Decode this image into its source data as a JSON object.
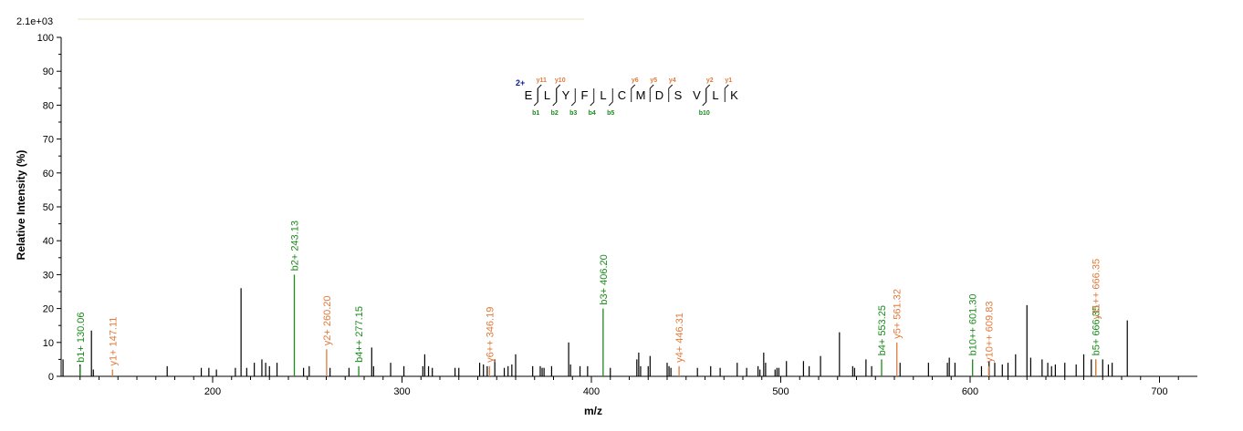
{
  "chart_data": {
    "type": "bar",
    "max_intensity_label": "2.1e+03",
    "xlabel": "m/z",
    "ylabel": "Relative   Intensity (%)",
    "xlim": [
      120,
      720
    ],
    "ylim": [
      0,
      100
    ],
    "x_ticks": [
      200,
      300,
      400,
      500,
      600,
      700
    ],
    "y_ticks": [
      0,
      10,
      20,
      30,
      40,
      50,
      60,
      70,
      80,
      90,
      100
    ],
    "colors": {
      "b_ion": "#1a8a1a",
      "y_ion": "#e07a3c",
      "unassigned": "#000000"
    },
    "annotated_peaks": [
      {
        "mz": 130.06,
        "intensity": 3,
        "label": "b1+ 130.06",
        "type": "b"
      },
      {
        "mz": 147.11,
        "intensity": 2,
        "label": "y1+ 147.11",
        "type": "y"
      },
      {
        "mz": 243.13,
        "intensity": 30,
        "label": "b2+ 243.13",
        "type": "b"
      },
      {
        "mz": 260.2,
        "intensity": 8,
        "label": "y2+ 260.20",
        "type": "y"
      },
      {
        "mz": 277.15,
        "intensity": 3,
        "label": "b4++ 277.15",
        "type": "b"
      },
      {
        "mz": 346.19,
        "intensity": 3,
        "label": "y6++ 346.19",
        "type": "y"
      },
      {
        "mz": 406.2,
        "intensity": 20,
        "label": "b3+ 406.20",
        "type": "b"
      },
      {
        "mz": 446.31,
        "intensity": 3,
        "label": "y4+ 446.31",
        "type": "y"
      },
      {
        "mz": 553.25,
        "intensity": 5,
        "label": "b4+ 553.25",
        "type": "b"
      },
      {
        "mz": 561.32,
        "intensity": 10,
        "label": "y5+ 561.32",
        "type": "y"
      },
      {
        "mz": 601.3,
        "intensity": 5,
        "label": "b10++ 601.30",
        "type": "b"
      },
      {
        "mz": 609.83,
        "intensity": 3,
        "label": "y10++ 609.83",
        "type": "y"
      },
      {
        "mz": 666.35,
        "intensity": 5,
        "label": "b5+ 666.35",
        "type": "b"
      },
      {
        "mz": 666.35,
        "intensity": 5,
        "label": "y11++ 666.35",
        "type": "y",
        "label_offset": 1
      }
    ],
    "unassigned_peaks": [
      [
        121,
        5
      ],
      [
        130,
        3.5
      ],
      [
        136,
        13.5
      ],
      [
        137,
        2
      ],
      [
        176,
        3
      ],
      [
        194,
        2.5
      ],
      [
        198,
        2.5
      ],
      [
        202,
        2
      ],
      [
        212,
        2.5
      ],
      [
        215,
        26
      ],
      [
        218,
        2.5
      ],
      [
        222,
        4
      ],
      [
        226,
        5
      ],
      [
        228,
        4
      ],
      [
        230,
        3
      ],
      [
        234,
        4
      ],
      [
        248,
        2.5
      ],
      [
        251,
        3
      ],
      [
        262,
        2.5
      ],
      [
        272,
        2.5
      ],
      [
        284,
        8.5
      ],
      [
        285,
        3
      ],
      [
        294,
        4
      ],
      [
        301,
        3
      ],
      [
        311,
        3
      ],
      [
        312,
        6.5
      ],
      [
        314,
        3
      ],
      [
        316,
        2.5
      ],
      [
        328,
        2.5
      ],
      [
        330,
        2.5
      ],
      [
        341,
        4
      ],
      [
        343,
        3.5
      ],
      [
        345,
        3
      ],
      [
        349,
        5
      ],
      [
        354,
        2.5
      ],
      [
        356,
        3
      ],
      [
        358,
        3.5
      ],
      [
        360,
        6.5
      ],
      [
        369,
        3
      ],
      [
        373,
        3
      ],
      [
        374,
        2.5
      ],
      [
        375,
        2.5
      ],
      [
        379,
        3
      ],
      [
        388,
        10
      ],
      [
        389,
        3.5
      ],
      [
        394,
        3
      ],
      [
        398,
        3
      ],
      [
        410,
        2.5
      ],
      [
        424,
        5
      ],
      [
        425,
        7
      ],
      [
        426,
        3
      ],
      [
        430,
        3
      ],
      [
        431,
        6
      ],
      [
        440,
        4
      ],
      [
        441,
        3
      ],
      [
        442,
        2.5
      ],
      [
        456,
        2.5
      ],
      [
        463,
        3
      ],
      [
        468,
        2.5
      ],
      [
        477,
        4
      ],
      [
        482,
        2.5
      ],
      [
        488,
        3
      ],
      [
        489,
        2
      ],
      [
        491,
        7
      ],
      [
        492,
        4
      ],
      [
        497,
        2
      ],
      [
        498,
        2.5
      ],
      [
        499,
        2.5
      ],
      [
        503,
        4.5
      ],
      [
        512,
        4.5
      ],
      [
        515,
        3
      ],
      [
        521,
        6
      ],
      [
        531,
        13
      ],
      [
        538,
        3
      ],
      [
        539,
        2.5
      ],
      [
        545,
        5
      ],
      [
        548,
        3
      ],
      [
        563,
        4
      ],
      [
        578,
        4
      ],
      [
        588,
        4
      ],
      [
        589,
        5.5
      ],
      [
        592,
        4
      ],
      [
        606,
        3
      ],
      [
        610,
        4.5
      ],
      [
        613,
        4
      ],
      [
        617,
        3.5
      ],
      [
        620,
        4
      ],
      [
        624,
        6.5
      ],
      [
        630,
        21
      ],
      [
        632,
        5.5
      ],
      [
        638,
        5
      ],
      [
        641,
        4
      ],
      [
        643,
        3
      ],
      [
        645,
        3.5
      ],
      [
        650,
        4
      ],
      [
        656,
        3.5
      ],
      [
        660,
        6.5
      ],
      [
        664,
        5
      ],
      [
        670,
        5
      ],
      [
        673,
        3.5
      ],
      [
        675,
        4
      ],
      [
        683,
        16.5
      ]
    ]
  },
  "sequence": {
    "charge": "2+",
    "residues": [
      "E",
      "L",
      "Y",
      "F",
      "L",
      "C",
      "M",
      "D",
      "S",
      "V",
      "L",
      "K"
    ],
    "b_ions": [
      {
        "after": 1,
        "label": "b1"
      },
      {
        "after": 2,
        "label": "b2"
      },
      {
        "after": 3,
        "label": "b3"
      },
      {
        "after": 4,
        "label": "b4"
      },
      {
        "after": 5,
        "label": "b5"
      },
      {
        "after": 10,
        "label": "b10"
      }
    ],
    "y_ions": [
      {
        "after": 1,
        "label": "y11"
      },
      {
        "after": 2,
        "label": "y10"
      },
      {
        "after": 6,
        "label": "y6"
      },
      {
        "after": 7,
        "label": "y5"
      },
      {
        "after": 8,
        "label": "y4"
      },
      {
        "after": 10,
        "label": "y2"
      },
      {
        "after": 11,
        "label": "y1"
      }
    ]
  }
}
